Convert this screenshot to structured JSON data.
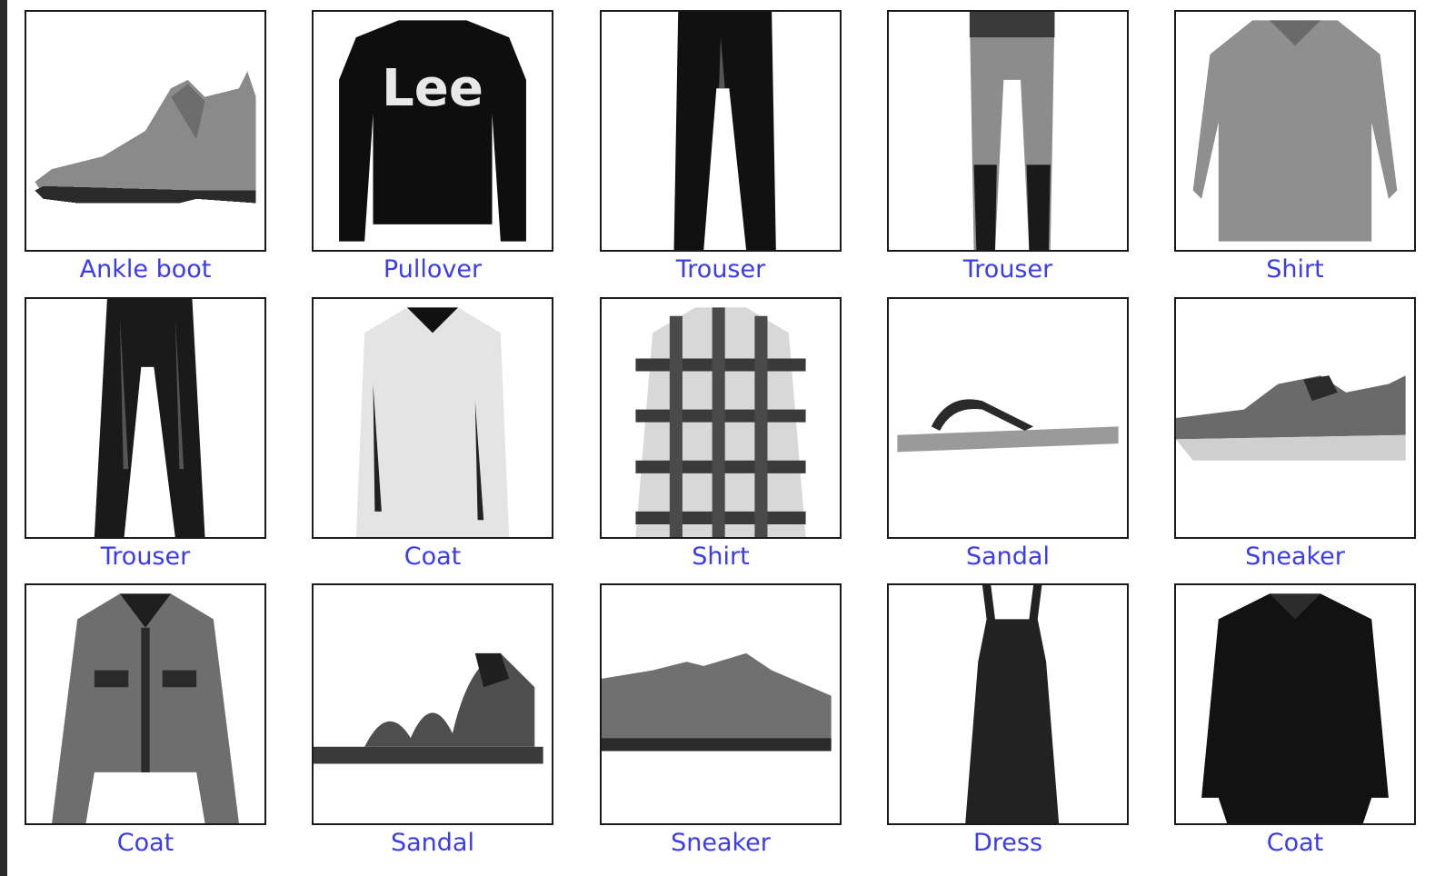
{
  "colors": {
    "label": "#3b3bf0",
    "frame": "#1a1a1a",
    "background": "#ffffff"
  },
  "grid": {
    "rows": [
      [
        {
          "label": "Ankle boot",
          "icon": "ankle-boot-icon"
        },
        {
          "label": "Pullover",
          "icon": "pullover-icon",
          "print": "Lee"
        },
        {
          "label": "Trouser",
          "icon": "trouser-icon"
        },
        {
          "label": "Trouser",
          "icon": "trouser-icon"
        },
        {
          "label": "Shirt",
          "icon": "shirt-icon"
        }
      ],
      [
        {
          "label": "Trouser",
          "icon": "trouser-icon"
        },
        {
          "label": "Coat",
          "icon": "coat-icon"
        },
        {
          "label": "Shirt",
          "icon": "plaid-shirt-icon"
        },
        {
          "label": "Sandal",
          "icon": "flip-flop-sandal-icon"
        },
        {
          "label": "Sneaker",
          "icon": "sneaker-icon"
        }
      ],
      [
        {
          "label": "Coat",
          "icon": "denim-jacket-icon"
        },
        {
          "label": "Sandal",
          "icon": "strappy-sandal-icon"
        },
        {
          "label": "Sneaker",
          "icon": "low-sneaker-icon"
        },
        {
          "label": "Dress",
          "icon": "dress-icon"
        },
        {
          "label": "Coat",
          "icon": "coat-icon"
        }
      ]
    ]
  }
}
